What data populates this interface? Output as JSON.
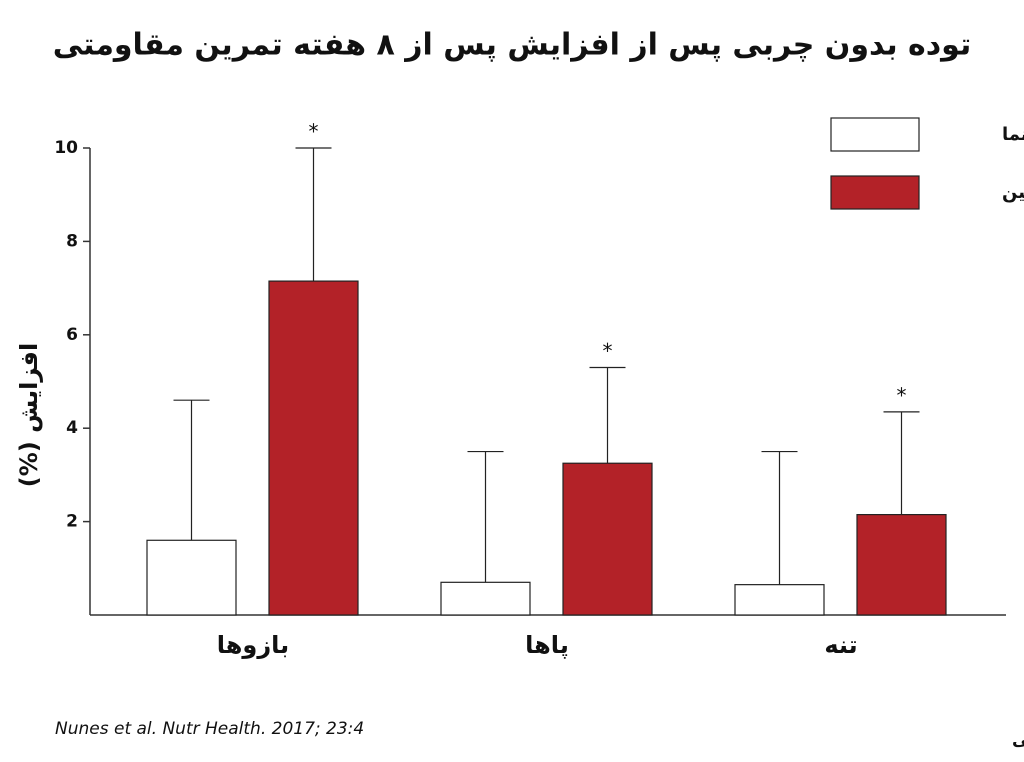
{
  "chart_data": {
    "type": "bar",
    "title": "توده بدون چربی پس از افزایش پس از ۸ هفته تمرین مقاومتی",
    "y_label": "افزایش (%)",
    "categories": [
      "بازوها",
      "پاها",
      "تنه"
    ],
    "series": [
      {
        "name": "دارونما",
        "color": "#ffffff",
        "values": [
          1.6,
          0.7,
          0.65
        ],
        "errors": [
          3.0,
          2.8,
          2.85
        ]
      },
      {
        "name": "کراتین",
        "color": "#b32228",
        "values": [
          7.15,
          3.25,
          2.15
        ],
        "errors": [
          2.85,
          2.05,
          2.2
        ],
        "marker_labels": [
          "*",
          "*",
          "*"
        ]
      }
    ],
    "ylim": [
      0,
      10
    ],
    "yticks": [
      2,
      4,
      6,
      8,
      10
    ],
    "grid": false,
    "source": "Nunes et al. Nutr Health. 2017; 23:4",
    "author": "بهبود شیمی"
  }
}
